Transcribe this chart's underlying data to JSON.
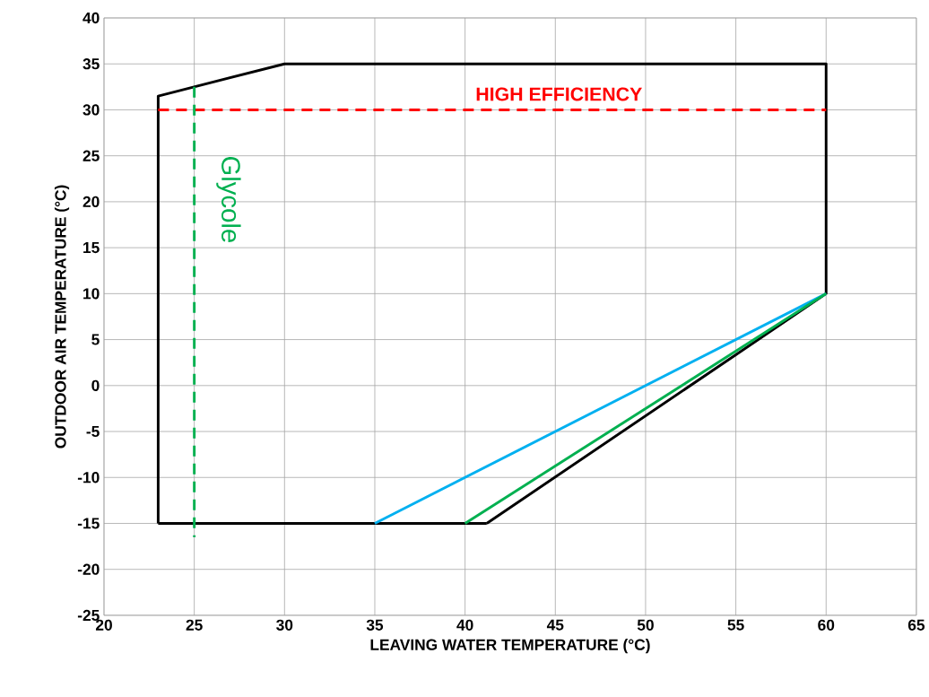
{
  "chart_data": {
    "type": "line",
    "xlabel": "LEAVING WATER TEMPERATURE (°C)",
    "ylabel": "OUTDOOR AIR TEMPERATURE (°C)",
    "xlim": [
      20,
      65
    ],
    "ylim": [
      -25,
      40
    ],
    "xticks": [
      20,
      25,
      30,
      35,
      40,
      45,
      50,
      55,
      60,
      65
    ],
    "yticks": [
      -25,
      -20,
      -15,
      -10,
      -5,
      0,
      5,
      10,
      15,
      20,
      25,
      30,
      35,
      40
    ],
    "grid": true,
    "marker": "none",
    "series": [
      {
        "color": "#000000",
        "line_style": "solid",
        "x": [
          41.2,
          60,
          60,
          30,
          23,
          23
        ],
        "values": [
          -15,
          10,
          35,
          35,
          31.5,
          -15
        ]
      },
      {
        "color": "#000000",
        "line_style": "solid",
        "x": [
          23,
          41.2
        ],
        "values": [
          -15,
          -15
        ]
      },
      {
        "color": "#00b0f0",
        "line_style": "solid",
        "x": [
          35,
          60
        ],
        "values": [
          -15,
          10
        ]
      },
      {
        "color": "#00b050",
        "line_style": "solid",
        "x": [
          40,
          60
        ],
        "values": [
          -15,
          10
        ]
      },
      {
        "name": "HIGH EFFICIENCY",
        "color": "#ff0000",
        "line_style": "dashed",
        "x": [
          23,
          60
        ],
        "values": [
          30,
          30
        ]
      },
      {
        "name": "Glycole",
        "color": "#00b050",
        "line_style": "dashed",
        "x": [
          25,
          25
        ],
        "values": [
          32.5,
          -16.5
        ]
      }
    ]
  }
}
